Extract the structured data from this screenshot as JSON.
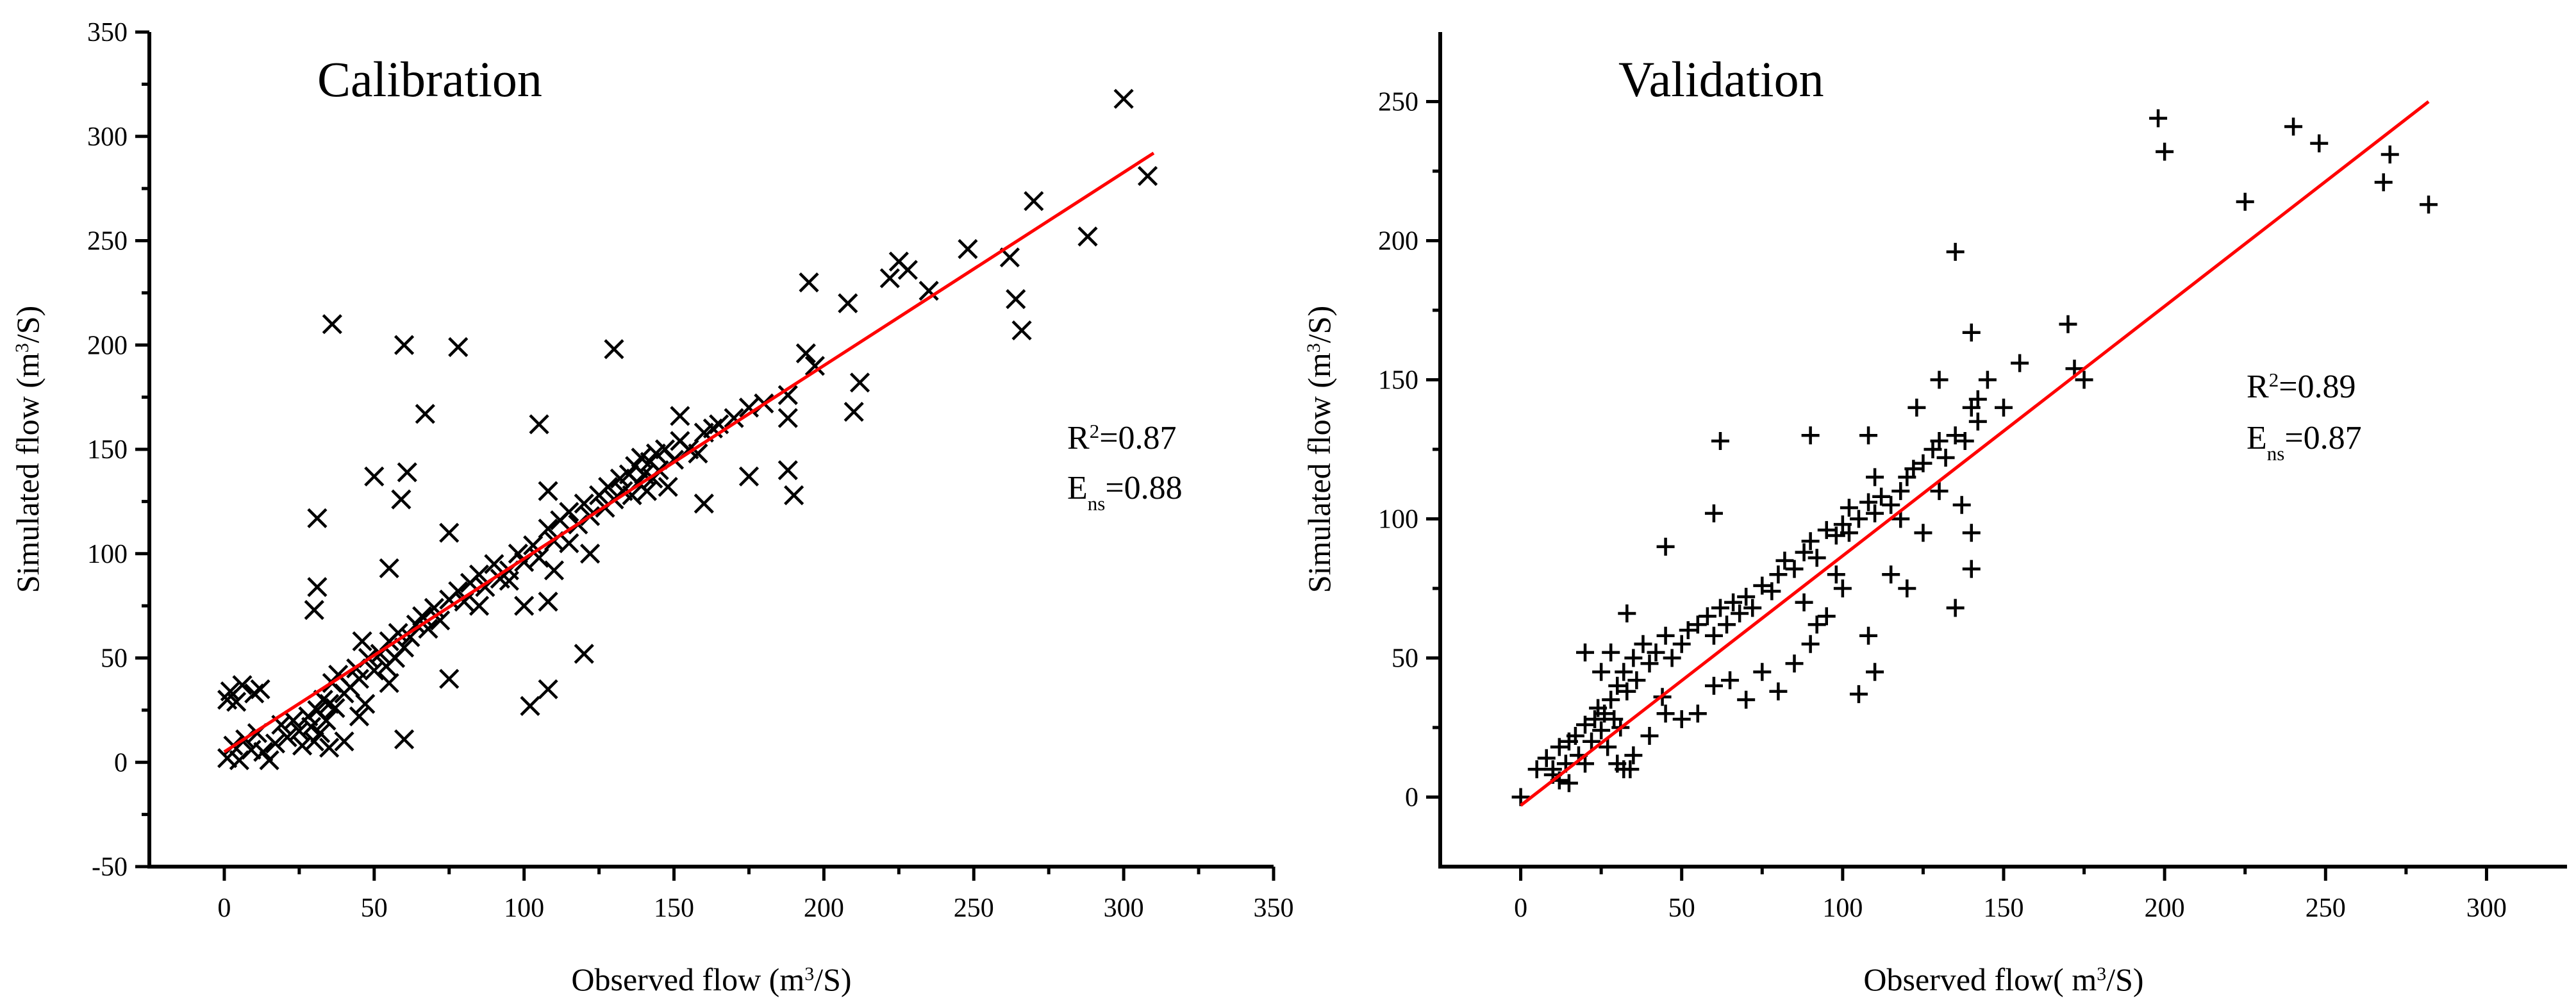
{
  "chart_data": [
    {
      "type": "scatter",
      "title": "Calibration",
      "xlabel": "Observed flow (m³/S)",
      "ylabel": "Simulated flow (m³/S)",
      "xlim": [
        -25,
        350
      ],
      "ylim": [
        -50,
        350
      ],
      "xticks": [
        0,
        50,
        100,
        150,
        200,
        250,
        300,
        350
      ],
      "yticks": [
        -50,
        0,
        50,
        100,
        150,
        200,
        250,
        300,
        350
      ],
      "grid": false,
      "marker": "x",
      "stats": {
        "r2": "R²=0.87",
        "ens": "Ens=0.88"
      },
      "fit_line": {
        "x": [
          0,
          310
        ],
        "y": [
          5,
          292
        ]
      },
      "points": [
        [
          1,
          2
        ],
        [
          3,
          8
        ],
        [
          5,
          1
        ],
        [
          7,
          11
        ],
        [
          9,
          6
        ],
        [
          11,
          14
        ],
        [
          13,
          5
        ],
        [
          15,
          1
        ],
        [
          17,
          9
        ],
        [
          19,
          18
        ],
        [
          21,
          12
        ],
        [
          23,
          20
        ],
        [
          25,
          15
        ],
        [
          26,
          8
        ],
        [
          28,
          22
        ],
        [
          29,
          17
        ],
        [
          30,
          10
        ],
        [
          31,
          25
        ],
        [
          32,
          14
        ],
        [
          33,
          30
        ],
        [
          34,
          20
        ],
        [
          35,
          28
        ],
        [
          36,
          38
        ],
        [
          37,
          26
        ],
        [
          38,
          42
        ],
        [
          40,
          33
        ],
        [
          42,
          36
        ],
        [
          44,
          45
        ],
        [
          45,
          40
        ],
        [
          46,
          58
        ],
        [
          48,
          50
        ],
        [
          50,
          44
        ],
        [
          52,
          52
        ],
        [
          54,
          46
        ],
        [
          55,
          58
        ],
        [
          57,
          50
        ],
        [
          58,
          62
        ],
        [
          60,
          55
        ],
        [
          62,
          60
        ],
        [
          64,
          66
        ],
        [
          66,
          70
        ],
        [
          68,
          64
        ],
        [
          70,
          74
        ],
        [
          72,
          68
        ],
        [
          75,
          78
        ],
        [
          78,
          82
        ],
        [
          80,
          77
        ],
        [
          82,
          86
        ],
        [
          85,
          90
        ],
        [
          87,
          84
        ],
        [
          90,
          95
        ],
        [
          92,
          88
        ],
        [
          95,
          92
        ],
        [
          98,
          100
        ],
        [
          100,
          96
        ],
        [
          103,
          104
        ],
        [
          105,
          98
        ],
        [
          108,
          112
        ],
        [
          110,
          106
        ],
        [
          112,
          116
        ],
        [
          115,
          120
        ],
        [
          118,
          114
        ],
        [
          120,
          124
        ],
        [
          122,
          118
        ],
        [
          125,
          128
        ],
        [
          127,
          122
        ],
        [
          128,
          132
        ],
        [
          130,
          126
        ],
        [
          132,
          136
        ],
        [
          133,
          130
        ],
        [
          135,
          138
        ],
        [
          136,
          128
        ],
        [
          137,
          142
        ],
        [
          138,
          134
        ],
        [
          139,
          146
        ],
        [
          140,
          138
        ],
        [
          141,
          130
        ],
        [
          142,
          144
        ],
        [
          143,
          136
        ],
        [
          144,
          148
        ],
        [
          145,
          140
        ],
        [
          147,
          150
        ],
        [
          148,
          132
        ],
        [
          150,
          145
        ],
        [
          152,
          154
        ],
        [
          155,
          150
        ],
        [
          158,
          148
        ],
        [
          160,
          158
        ],
        [
          163,
          160
        ],
        [
          165,
          162
        ],
        [
          170,
          165
        ],
        [
          175,
          170
        ],
        [
          180,
          172
        ],
        [
          188,
          176
        ],
        [
          1,
          30
        ],
        [
          2,
          34
        ],
        [
          4,
          29
        ],
        [
          6,
          37
        ],
        [
          10,
          33
        ],
        [
          12,
          35
        ],
        [
          30,
          73
        ],
        [
          31,
          84
        ],
        [
          31,
          117
        ],
        [
          36,
          210
        ],
        [
          50,
          137
        ],
        [
          55,
          93
        ],
        [
          59,
          126
        ],
        [
          60,
          200
        ],
        [
          61,
          139
        ],
        [
          67,
          167
        ],
        [
          78,
          199
        ],
        [
          75,
          110
        ],
        [
          105,
          162
        ],
        [
          108,
          130
        ],
        [
          130,
          198
        ],
        [
          102,
          27
        ],
        [
          108,
          35
        ],
        [
          120,
          52
        ],
        [
          75,
          40
        ],
        [
          60,
          11
        ],
        [
          47,
          28
        ],
        [
          55,
          38
        ],
        [
          40,
          10
        ],
        [
          35,
          7
        ],
        [
          45,
          22
        ],
        [
          108,
          77
        ],
        [
          100,
          75
        ],
        [
          110,
          92
        ],
        [
          152,
          166
        ],
        [
          160,
          124
        ],
        [
          175,
          137
        ],
        [
          188,
          140
        ],
        [
          190,
          128
        ],
        [
          188,
          165
        ],
        [
          194,
          196
        ],
        [
          195,
          230
        ],
        [
          197,
          190
        ],
        [
          208,
          220
        ],
        [
          212,
          182
        ],
        [
          210,
          168
        ],
        [
          222,
          232
        ],
        [
          225,
          240
        ],
        [
          228,
          236
        ],
        [
          235,
          226
        ],
        [
          248,
          246
        ],
        [
          262,
          242
        ],
        [
          264,
          222
        ],
        [
          266,
          207
        ],
        [
          270,
          269
        ],
        [
          288,
          252
        ],
        [
          300,
          318
        ],
        [
          308,
          281
        ],
        [
          122,
          100
        ],
        [
          115,
          105
        ],
        [
          85,
          75
        ],
        [
          95,
          87
        ]
      ]
    },
    {
      "type": "scatter",
      "title": "Validation",
      "xlabel": "Observed flow(  m³/S)",
      "ylabel": "Simulated flow (m³/S)",
      "xlim": [
        -25,
        325
      ],
      "ylim": [
        -25,
        275
      ],
      "xticks": [
        0,
        50,
        100,
        150,
        200,
        250,
        300
      ],
      "yticks": [
        0,
        50,
        100,
        150,
        200,
        250
      ],
      "grid": false,
      "marker": "+",
      "stats": {
        "r2": "R²=0.89",
        "ens": "Ens=0.87"
      },
      "fit_line": {
        "x": [
          0,
          282
        ],
        "y": [
          -3,
          250
        ]
      },
      "points": [
        [
          0,
          0
        ],
        [
          5,
          10
        ],
        [
          8,
          14
        ],
        [
          10,
          10
        ],
        [
          12,
          18
        ],
        [
          14,
          12
        ],
        [
          15,
          20
        ],
        [
          17,
          22
        ],
        [
          18,
          15
        ],
        [
          20,
          26
        ],
        [
          22,
          20
        ],
        [
          23,
          28
        ],
        [
          24,
          32
        ],
        [
          25,
          24
        ],
        [
          26,
          30
        ],
        [
          27,
          18
        ],
        [
          28,
          35
        ],
        [
          29,
          28
        ],
        [
          30,
          40
        ],
        [
          31,
          25
        ],
        [
          32,
          45
        ],
        [
          33,
          38
        ],
        [
          34,
          10
        ],
        [
          35,
          50
        ],
        [
          36,
          42
        ],
        [
          38,
          55
        ],
        [
          40,
          48
        ],
        [
          42,
          52
        ],
        [
          44,
          36
        ],
        [
          45,
          58
        ],
        [
          47,
          50
        ],
        [
          50,
          55
        ],
        [
          52,
          60
        ],
        [
          55,
          62
        ],
        [
          58,
          65
        ],
        [
          60,
          58
        ],
        [
          62,
          68
        ],
        [
          64,
          62
        ],
        [
          66,
          70
        ],
        [
          68,
          66
        ],
        [
          70,
          72
        ],
        [
          72,
          68
        ],
        [
          75,
          76
        ],
        [
          78,
          74
        ],
        [
          80,
          80
        ],
        [
          82,
          85
        ],
        [
          85,
          82
        ],
        [
          88,
          88
        ],
        [
          90,
          92
        ],
        [
          92,
          86
        ],
        [
          95,
          96
        ],
        [
          98,
          94
        ],
        [
          100,
          98
        ],
        [
          102,
          104
        ],
        [
          105,
          100
        ],
        [
          108,
          106
        ],
        [
          110,
          102
        ],
        [
          112,
          108
        ],
        [
          115,
          105
        ],
        [
          118,
          110
        ],
        [
          120,
          115
        ],
        [
          122,
          118
        ],
        [
          125,
          120
        ],
        [
          128,
          125
        ],
        [
          130,
          128
        ],
        [
          132,
          122
        ],
        [
          135,
          130
        ],
        [
          138,
          128
        ],
        [
          140,
          140
        ],
        [
          142,
          135
        ],
        [
          145,
          150
        ],
        [
          10,
          8
        ],
        [
          12,
          6
        ],
        [
          20,
          12
        ],
        [
          30,
          12
        ],
        [
          32,
          10
        ],
        [
          35,
          15
        ],
        [
          28,
          52
        ],
        [
          33,
          66
        ],
        [
          45,
          90
        ],
        [
          60,
          102
        ],
        [
          62,
          128
        ],
        [
          90,
          130
        ],
        [
          108,
          130
        ],
        [
          100,
          75
        ],
        [
          105,
          37
        ],
        [
          108,
          58
        ],
        [
          110,
          45
        ],
        [
          95,
          65
        ],
        [
          90,
          55
        ],
        [
          123,
          140
        ],
        [
          130,
          150
        ],
        [
          135,
          196
        ],
        [
          137,
          105
        ],
        [
          140,
          167
        ],
        [
          142,
          143
        ],
        [
          135,
          68
        ],
        [
          140,
          95
        ],
        [
          140,
          82
        ],
        [
          150,
          140
        ],
        [
          155,
          156
        ],
        [
          170,
          170
        ],
        [
          172,
          154
        ],
        [
          175,
          150
        ],
        [
          198,
          244
        ],
        [
          200,
          232
        ],
        [
          225,
          214
        ],
        [
          240,
          241
        ],
        [
          248,
          235
        ],
        [
          268,
          221
        ],
        [
          270,
          231
        ],
        [
          282,
          213
        ],
        [
          50,
          28
        ],
        [
          55,
          30
        ],
        [
          60,
          40
        ],
        [
          65,
          42
        ],
        [
          70,
          35
        ],
        [
          75,
          45
        ],
        [
          80,
          38
        ],
        [
          85,
          48
        ],
        [
          88,
          70
        ],
        [
          92,
          62
        ],
        [
          98,
          80
        ],
        [
          115,
          80
        ],
        [
          120,
          75
        ],
        [
          125,
          95
        ],
        [
          130,
          110
        ],
        [
          40,
          22
        ],
        [
          45,
          30
        ],
        [
          25,
          45
        ],
        [
          20,
          52
        ],
        [
          15,
          5
        ],
        [
          110,
          115
        ],
        [
          118,
          100
        ],
        [
          102,
          95
        ]
      ]
    }
  ]
}
